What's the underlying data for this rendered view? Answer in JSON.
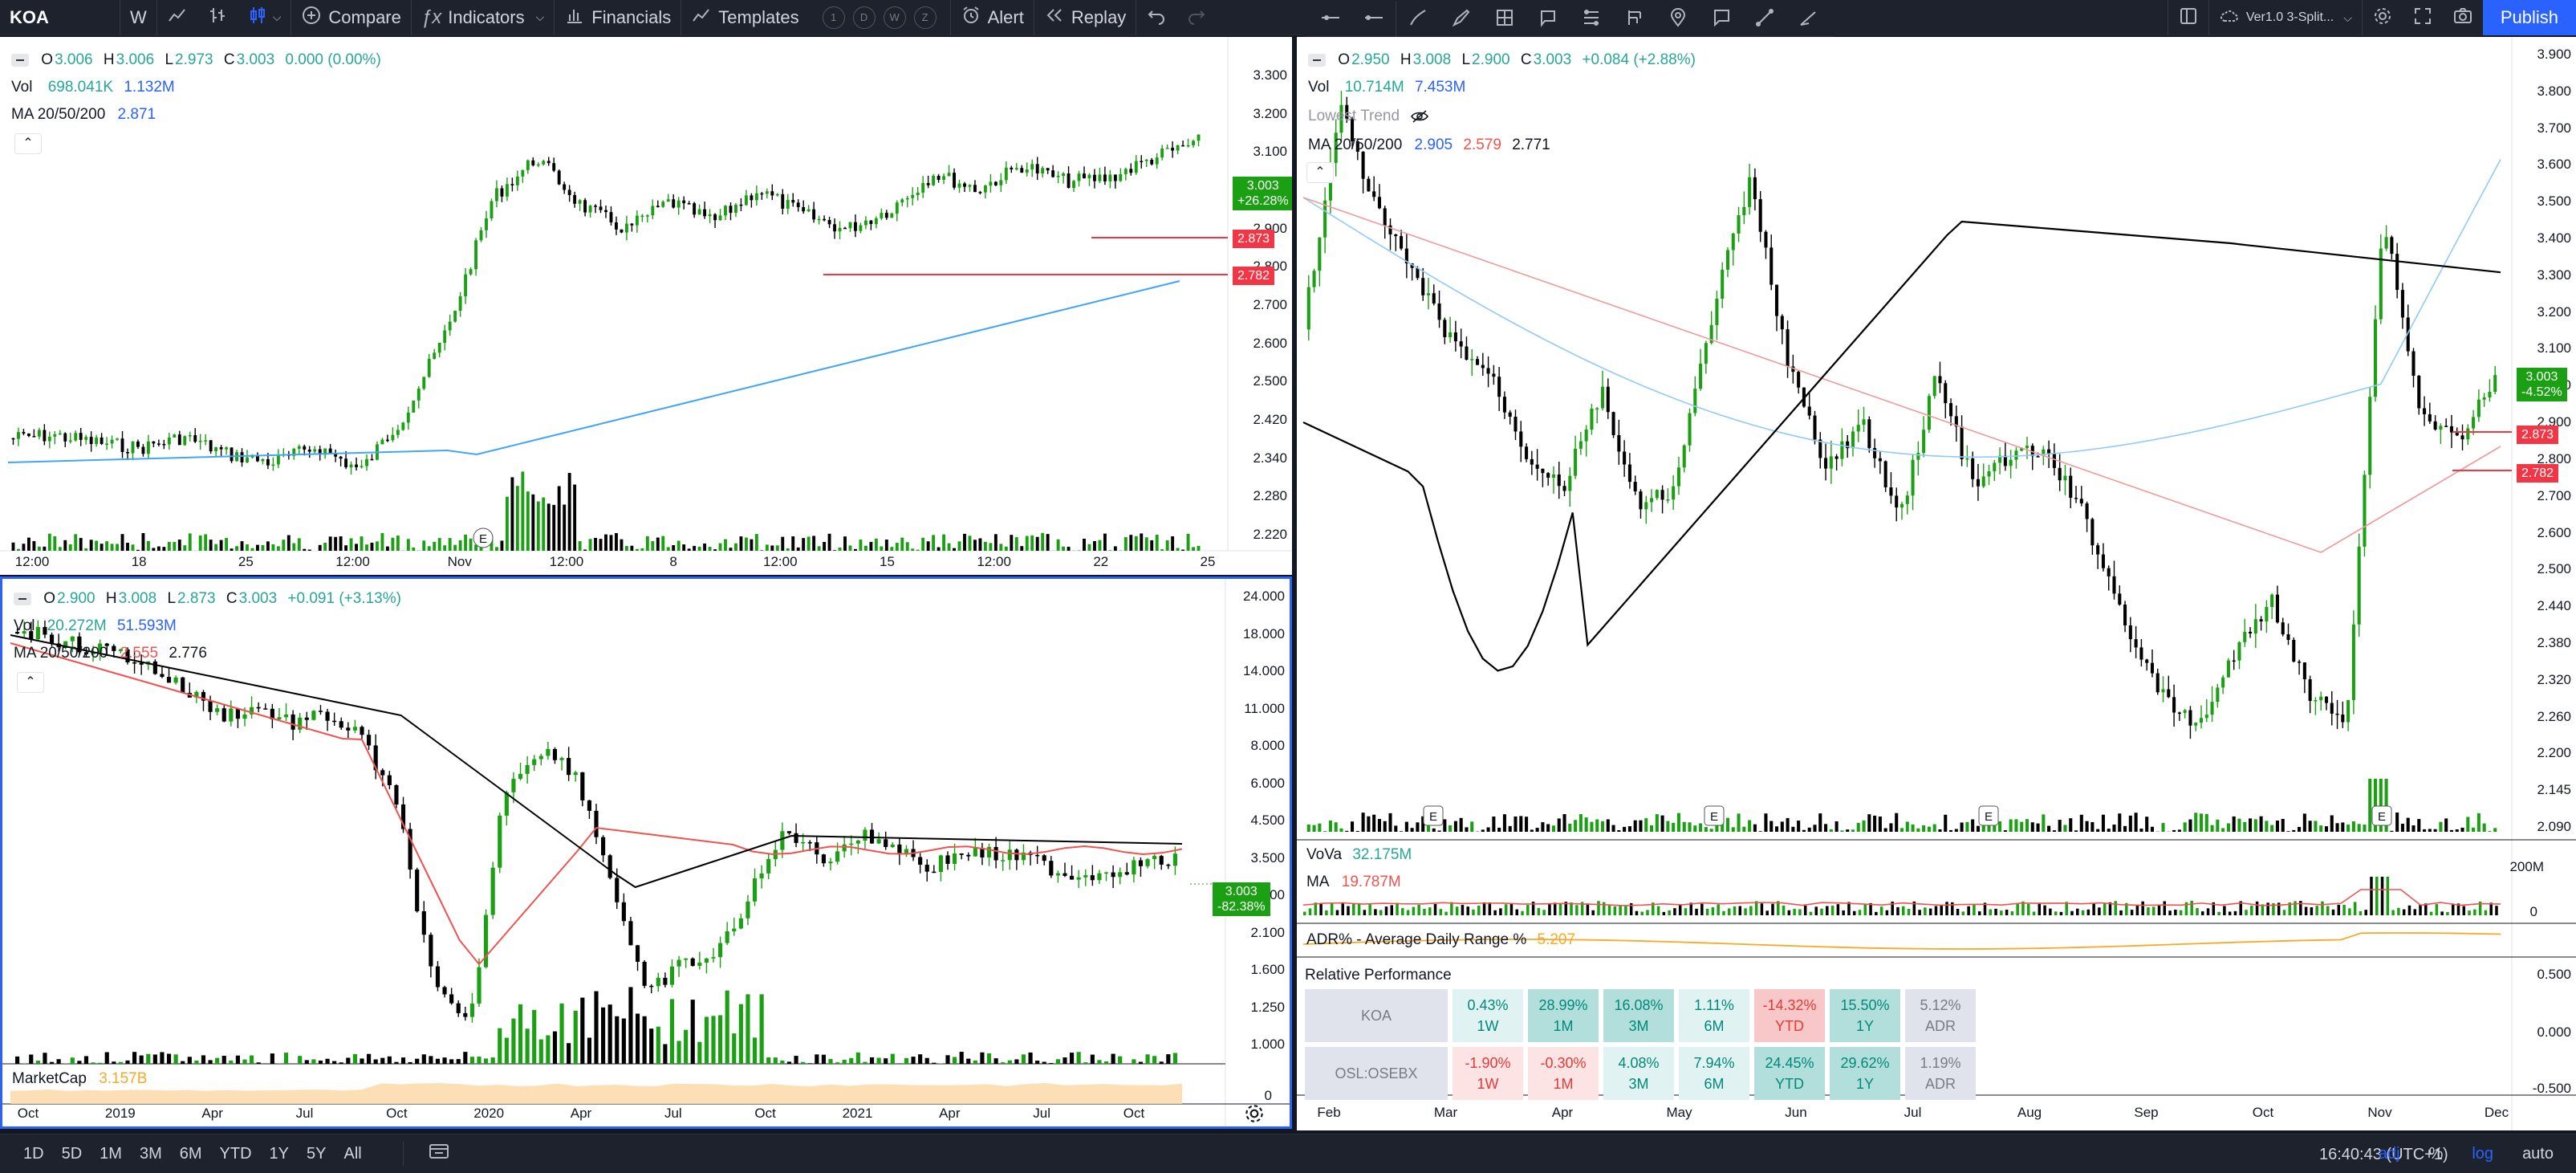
{
  "toolbar": {
    "symbol": "KOA",
    "interval": "W",
    "compare": "Compare",
    "indicators": "Indicators",
    "financials": "Financials",
    "templates": "Templates",
    "template_slots": [
      "1",
      "D",
      "W",
      "Z"
    ],
    "alert": "Alert",
    "replay": "Replay",
    "layout_name": "Ver1.0 3-Split...",
    "publish": "Publish"
  },
  "panel_a": {
    "legend_ohlc": {
      "o": "3.006",
      "h": "3.006",
      "l": "2.973",
      "c": "3.003",
      "chg": "0.000 (0.00%)"
    },
    "vol_label": "Vol",
    "vol_value": "698.041K",
    "vol_ma": "1.132M",
    "ma_label": "MA 20/50/200",
    "ma_value": "2.871",
    "y_ticks": [
      "3.300",
      "3.200",
      "3.100",
      "3.000",
      "2.900",
      "2.800",
      "2.700",
      "2.600",
      "2.500",
      "2.420",
      "2.340",
      "2.280",
      "2.220"
    ],
    "x_ticks": [
      "12:00",
      "18",
      "25",
      "12:00",
      "Nov",
      "12:00",
      "8",
      "12:00",
      "15",
      "12:00",
      "22",
      "25"
    ],
    "price_tag": "3.003",
    "price_tag_sub": "+26.28%",
    "level_1": "2.873",
    "level_2": "2.782",
    "earnings_marker": "E"
  },
  "panel_b": {
    "legend_ohlc": {
      "o": "2.900",
      "h": "3.008",
      "l": "2.873",
      "c": "3.003",
      "chg": "+0.091 (+3.13%)"
    },
    "vol_label": "Vol",
    "vol_value": "20.272M",
    "vol_ma": "51.593M",
    "ma_label": "MA 20/50/200",
    "ma_red": "2.555",
    "ma_black": "2.776",
    "y_ticks": [
      "24.000",
      "18.000",
      "14.000",
      "11.000",
      "8.000",
      "6.000",
      "4.500",
      "3.500",
      "2.700",
      "2.100",
      "1.600",
      "1.250",
      "1.000"
    ],
    "x_ticks": [
      "Oct",
      "2019",
      "Apr",
      "Jul",
      "Oct",
      "2020",
      "Apr",
      "Jul",
      "Oct",
      "2021",
      "Apr",
      "Jul",
      "Oct"
    ],
    "price_tag": "3.003",
    "price_tag_sub": "-82.38%",
    "marketcap_label": "MarketCap",
    "marketcap_value": "3.157B",
    "marketcap_axis": "0"
  },
  "panel_c": {
    "legend_ohlc": {
      "o": "2.950",
      "h": "3.008",
      "l": "2.900",
      "c": "3.003",
      "chg": "+0.084 (+2.88%)"
    },
    "vol_label": "Vol",
    "vol_value": "10.714M",
    "vol_ma": "7.453M",
    "lowest_trend": "Lowest Trend",
    "ma_label": "MA 20/50/200",
    "ma_blue": "2.905",
    "ma_red": "2.579",
    "ma_black": "2.771",
    "y_ticks": [
      "3.900",
      "3.800",
      "3.700",
      "3.600",
      "3.500",
      "3.400",
      "3.300",
      "3.200",
      "3.100",
      "3.000",
      "2.900",
      "2.800",
      "2.700",
      "2.600",
      "2.500",
      "2.440",
      "2.380",
      "2.320",
      "2.260",
      "2.200",
      "2.145",
      "2.090"
    ],
    "x_ticks": [
      "Feb",
      "Mar",
      "Apr",
      "May",
      "Jun",
      "Jul",
      "Aug",
      "Sep",
      "Oct",
      "Nov",
      "Dec"
    ],
    "price_tag": "3.003",
    "price_tag_sub": "-4.52%",
    "level_1": "2.873",
    "level_2": "2.782",
    "vova_label": "VoVa",
    "vova_value": "32.175M",
    "vova_ma_label": "MA",
    "vova_ma_value": "19.787M",
    "vova_axis": [
      "200M",
      "0"
    ],
    "adr_label": "ADR% - Average Daily Range %",
    "adr_value": "5.207",
    "relperf_axis": [
      "0.500",
      "0.000",
      "-0.500"
    ]
  },
  "relative_performance": {
    "title": "Relative Performance",
    "rows": [
      {
        "name": "KOA",
        "cells": [
          {
            "v": "0.43%",
            "p": "1W",
            "c": "c-lg"
          },
          {
            "v": "28.99%",
            "p": "1M",
            "c": "c-tg"
          },
          {
            "v": "16.08%",
            "p": "3M",
            "c": "c-tg"
          },
          {
            "v": "1.11%",
            "p": "6M",
            "c": "c-lg"
          },
          {
            "v": "-14.32%",
            "p": "YTD",
            "c": "c-r"
          },
          {
            "v": "15.50%",
            "p": "1Y",
            "c": "c-tg"
          },
          {
            "v": "5.12%",
            "p": "ADR",
            "c": "c-gy"
          }
        ]
      },
      {
        "name": "OSL:OSEBX",
        "cells": [
          {
            "v": "-1.90%",
            "p": "1W",
            "c": "c-lr"
          },
          {
            "v": "-0.30%",
            "p": "1M",
            "c": "c-lr"
          },
          {
            "v": "4.08%",
            "p": "3M",
            "c": "c-lg"
          },
          {
            "v": "7.94%",
            "p": "6M",
            "c": "c-lg"
          },
          {
            "v": "24.45%",
            "p": "YTD",
            "c": "c-tg"
          },
          {
            "v": "29.62%",
            "p": "1Y",
            "c": "c-tg"
          },
          {
            "v": "1.19%",
            "p": "ADR",
            "c": "c-gy"
          }
        ]
      }
    ]
  },
  "bottom_bar": {
    "ranges": [
      "1D",
      "5D",
      "1M",
      "3M",
      "6M",
      "YTD",
      "1Y",
      "5Y",
      "All"
    ],
    "clock": "16:40:43 (UTC+1)",
    "adj": "adj",
    "percent": "%",
    "log": "log",
    "auto": "auto"
  },
  "colors": {
    "up": "#26a69a",
    "up_candle": "#1ba014",
    "down": "#000000",
    "ma_blue": "#42a5f5",
    "ma_red": "#ef5350",
    "ma_black": "#000000",
    "accent": "#2962ff",
    "adr": "#f9a825",
    "marketcap": "#fcd9a8"
  }
}
